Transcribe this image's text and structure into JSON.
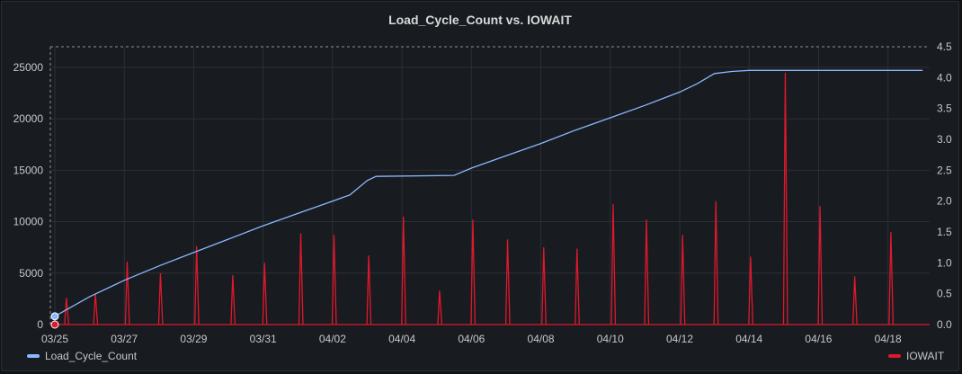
{
  "title": "Load_Cycle_Count vs. IOWAIT",
  "colors": {
    "background": "#181b1f",
    "grid": "#2c2f36",
    "load_cycle_count": "#8ab8ff",
    "iowait": "#e0182d"
  },
  "legend": {
    "left_label": "Load_Cycle_Count",
    "right_label": "IOWAIT",
    "placement": "bottom"
  },
  "chart_data": {
    "type": "line",
    "title": "Load_Cycle_Count vs. IOWAIT",
    "x_tick_labels": [
      "03/25",
      "03/27",
      "03/29",
      "03/31",
      "04/02",
      "04/04",
      "04/06",
      "04/08",
      "04/10",
      "04/12",
      "04/14",
      "04/16",
      "04/18"
    ],
    "x_range": [
      "03/25",
      "04/19"
    ],
    "y_left_ticks": [
      "0",
      "5000",
      "10000",
      "15000",
      "20000",
      "25000"
    ],
    "y_left_range": [
      0,
      27000
    ],
    "y_right_ticks": [
      "0.0",
      "0.5",
      "1.0",
      "1.5",
      "2.0",
      "2.5",
      "3.0",
      "3.5",
      "4.0",
      "4.5"
    ],
    "y_right_range": [
      0,
      4.5
    ],
    "grid": true,
    "series": [
      {
        "name": "Load_Cycle_Count",
        "axis": "left",
        "style": "step-line",
        "points": [
          [
            "03/25",
            800
          ],
          [
            "03/26",
            2700
          ],
          [
            "03/27",
            4300
          ],
          [
            "03/28",
            5700
          ],
          [
            "03/29",
            7000
          ],
          [
            "03/30",
            8300
          ],
          [
            "03/31",
            9600
          ],
          [
            "04/01",
            10800
          ],
          [
            "04/02",
            12000
          ],
          [
            "04/02 12h",
            12600
          ],
          [
            "04/03",
            14000
          ],
          [
            "04/03 06h",
            14400
          ],
          [
            "04/05 12h",
            14500
          ],
          [
            "04/06",
            15200
          ],
          [
            "04/07",
            16400
          ],
          [
            "04/08",
            17600
          ],
          [
            "04/09",
            18900
          ],
          [
            "04/10",
            20100
          ],
          [
            "04/11",
            21300
          ],
          [
            "04/12",
            22600
          ],
          [
            "04/12 12h",
            23400
          ],
          [
            "04/13",
            24400
          ],
          [
            "04/13 12h",
            24600
          ],
          [
            "04/14",
            24700
          ],
          [
            "04/19",
            24700
          ]
        ]
      },
      {
        "name": "IOWAIT",
        "axis": "right",
        "style": "spikes",
        "points": [
          [
            "03/25 08h",
            0.43
          ],
          [
            "03/26 04h",
            0.5
          ],
          [
            "03/27 02h",
            1.02
          ],
          [
            "03/28 01h",
            0.83
          ],
          [
            "03/29 02h",
            1.27
          ],
          [
            "03/30 03h",
            0.8
          ],
          [
            "03/31 01h",
            1.0
          ],
          [
            "04/01 02h",
            1.48
          ],
          [
            "04/02 01h",
            1.45
          ],
          [
            "04/03 01h",
            1.12
          ],
          [
            "04/04 01h",
            1.75
          ],
          [
            "04/05 02h",
            0.55
          ],
          [
            "04/06 01h",
            1.7
          ],
          [
            "04/07 01h",
            1.38
          ],
          [
            "04/08 02h",
            1.25
          ],
          [
            "04/09 01h",
            1.23
          ],
          [
            "04/10 02h",
            1.95
          ],
          [
            "04/11 01h",
            1.7
          ],
          [
            "04/12 02h",
            1.45
          ],
          [
            "04/13 01h",
            2.0
          ],
          [
            "04/14 01h",
            1.1
          ],
          [
            "04/15 01h",
            4.08
          ],
          [
            "04/16 01h",
            1.92
          ],
          [
            "04/17 01h",
            0.78
          ],
          [
            "04/18 02h",
            1.5
          ]
        ]
      }
    ]
  }
}
